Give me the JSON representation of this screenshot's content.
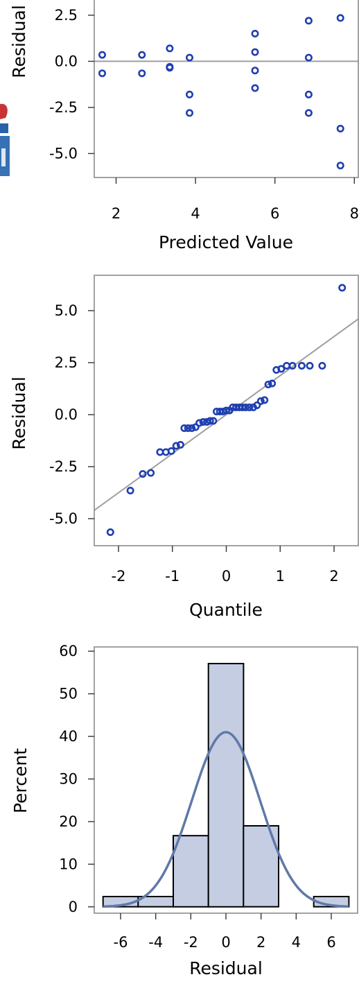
{
  "colors": {
    "marker": "#1f3fb0",
    "reference_line": "#9e9e9e",
    "bar_fill": "#c4cde2",
    "density_curve": "#5f79a8",
    "frame": "#8a8a8a"
  },
  "chart_data": [
    {
      "type": "scatter",
      "title": "",
      "xlabel": "Predicted Value",
      "ylabel": "Residual",
      "xlim": [
        1.45,
        8.1
      ],
      "ylim": [
        -6.3,
        3.4
      ],
      "xticks": [
        2,
        4,
        6,
        8
      ],
      "yticks": [
        -5.0,
        -2.5,
        0.0,
        2.5
      ],
      "xtick_labels": [
        "2",
        "4",
        "6",
        "8"
      ],
      "ytick_labels": [
        "-5.0",
        "-2.5",
        "0.0",
        "2.5"
      ],
      "reference_line": {
        "y": 0
      },
      "grid": false,
      "points": [
        {
          "x": 1.65,
          "y": 0.35
        },
        {
          "x": 1.65,
          "y": -0.65
        },
        {
          "x": 2.65,
          "y": 0.35
        },
        {
          "x": 2.65,
          "y": -0.65
        },
        {
          "x": 3.35,
          "y": 0.7
        },
        {
          "x": 3.35,
          "y": -0.35
        },
        {
          "x": 3.35,
          "y": -0.3
        },
        {
          "x": 3.85,
          "y": 0.2
        },
        {
          "x": 3.85,
          "y": -1.8
        },
        {
          "x": 3.85,
          "y": -2.8
        },
        {
          "x": 5.5,
          "y": 1.5
        },
        {
          "x": 5.5,
          "y": 0.5
        },
        {
          "x": 5.5,
          "y": -0.5
        },
        {
          "x": 5.5,
          "y": -1.45
        },
        {
          "x": 6.85,
          "y": 2.2
        },
        {
          "x": 6.85,
          "y": 0.2
        },
        {
          "x": 6.85,
          "y": -1.8
        },
        {
          "x": 6.85,
          "y": -2.8
        },
        {
          "x": 7.65,
          "y": 2.35
        },
        {
          "x": 7.65,
          "y": -3.65
        },
        {
          "x": 7.65,
          "y": -5.65
        }
      ]
    },
    {
      "type": "scatter",
      "title": "",
      "xlabel": "Quantile",
      "ylabel": "Residual",
      "xlim": [
        -2.45,
        2.45
      ],
      "ylim": [
        -6.3,
        6.7
      ],
      "xticks": [
        -2,
        -1,
        0,
        1,
        2
      ],
      "yticks": [
        -5.0,
        -2.5,
        0.0,
        2.5,
        5.0
      ],
      "xtick_labels": [
        "-2",
        "-1",
        "0",
        "1",
        "2"
      ],
      "ytick_labels": [
        "-5.0",
        "-2.5",
        "0.0",
        "2.5",
        "5.0"
      ],
      "reference_line": {
        "from": [
          -2.45,
          -4.6
        ],
        "to": [
          2.45,
          4.6
        ]
      },
      "grid": false,
      "points": [
        {
          "x": -2.15,
          "y": -5.65
        },
        {
          "x": -1.78,
          "y": -3.65
        },
        {
          "x": -1.55,
          "y": -2.85
        },
        {
          "x": -1.4,
          "y": -2.8
        },
        {
          "x": -1.23,
          "y": -1.8
        },
        {
          "x": -1.12,
          "y": -1.8
        },
        {
          "x": -1.02,
          "y": -1.75
        },
        {
          "x": -0.93,
          "y": -1.5
        },
        {
          "x": -0.85,
          "y": -1.45
        },
        {
          "x": -0.78,
          "y": -0.65
        },
        {
          "x": -0.71,
          "y": -0.65
        },
        {
          "x": -0.64,
          "y": -0.65
        },
        {
          "x": -0.57,
          "y": -0.6
        },
        {
          "x": -0.5,
          "y": -0.4
        },
        {
          "x": -0.43,
          "y": -0.35
        },
        {
          "x": -0.36,
          "y": -0.35
        },
        {
          "x": -0.3,
          "y": -0.3
        },
        {
          "x": -0.24,
          "y": -0.3
        },
        {
          "x": -0.18,
          "y": 0.15
        },
        {
          "x": -0.12,
          "y": 0.15
        },
        {
          "x": -0.06,
          "y": 0.15
        },
        {
          "x": 0.0,
          "y": 0.2
        },
        {
          "x": 0.06,
          "y": 0.2
        },
        {
          "x": 0.12,
          "y": 0.35
        },
        {
          "x": 0.18,
          "y": 0.35
        },
        {
          "x": 0.24,
          "y": 0.35
        },
        {
          "x": 0.3,
          "y": 0.35
        },
        {
          "x": 0.36,
          "y": 0.35
        },
        {
          "x": 0.43,
          "y": 0.35
        },
        {
          "x": 0.5,
          "y": 0.35
        },
        {
          "x": 0.57,
          "y": 0.45
        },
        {
          "x": 0.64,
          "y": 0.65
        },
        {
          "x": 0.71,
          "y": 0.7
        },
        {
          "x": 0.78,
          "y": 1.45
        },
        {
          "x": 0.85,
          "y": 1.5
        },
        {
          "x": 0.93,
          "y": 2.15
        },
        {
          "x": 1.02,
          "y": 2.2
        },
        {
          "x": 1.12,
          "y": 2.35
        },
        {
          "x": 1.23,
          "y": 2.35
        },
        {
          "x": 1.4,
          "y": 2.35
        },
        {
          "x": 1.55,
          "y": 2.35
        },
        {
          "x": 1.78,
          "y": 2.35
        },
        {
          "x": 2.15,
          "y": 6.1
        }
      ]
    },
    {
      "type": "bar",
      "title": "",
      "xlabel": "Residual",
      "ylabel": "Percent",
      "xlim": [
        -7.5,
        7.5
      ],
      "ylim": [
        -1.5,
        61
      ],
      "xticks": [
        -6,
        -4,
        -2,
        0,
        2,
        4,
        6
      ],
      "yticks": [
        0,
        10,
        20,
        30,
        40,
        50,
        60
      ],
      "xtick_labels": [
        "-6",
        "-4",
        "-2",
        "0",
        "2",
        "4",
        "6"
      ],
      "ytick_labels": [
        "0",
        "10",
        "20",
        "30",
        "40",
        "50",
        "60"
      ],
      "bin_edges": [
        -7,
        -5,
        -3,
        -1,
        1,
        3,
        5,
        7
      ],
      "values": [
        2.4,
        2.4,
        16.7,
        57.1,
        19.0,
        0,
        2.4
      ],
      "density_curve": {
        "kind": "normal",
        "mean": 0,
        "sd": 1.95,
        "peak_percent": 41
      },
      "grid": false
    }
  ]
}
